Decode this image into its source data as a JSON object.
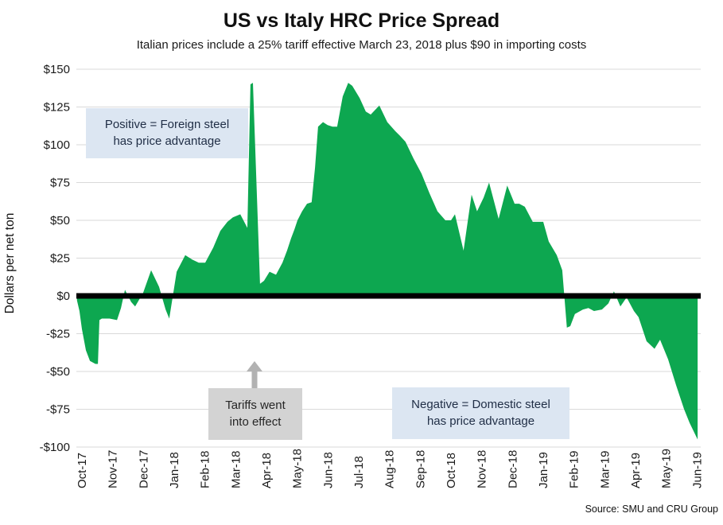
{
  "chart_data": {
    "type": "area",
    "title": "US vs Italy HRC Price Spread",
    "subtitle": "Italian prices include a 25% tariff effective March 23, 2018 plus $90 in importing costs",
    "ylabel": "Dollars per net ton",
    "source": "Source: SMU and CRU Group",
    "x_tick_labels": [
      "Oct-17",
      "Nov-17",
      "Dec-17",
      "Jan-18",
      "Feb-18",
      "Mar-18",
      "Apr-18",
      "May-18",
      "Jun-18",
      "Jul-18",
      "Aug-18",
      "Sep-18",
      "Oct-18",
      "Nov-18",
      "Dec-18",
      "Jan-19",
      "Feb-19",
      "Mar-19",
      "Apr-19",
      "May-19",
      "Jun-19"
    ],
    "y_tick_labels": [
      "$150",
      "$125",
      "$100",
      "$75",
      "$50",
      "$25",
      "$0",
      "-$25",
      "-$50",
      "-$75",
      "-$100"
    ],
    "y_tick_values": [
      150,
      125,
      100,
      75,
      50,
      25,
      0,
      -25,
      -50,
      -75,
      -100
    ],
    "ylim": [
      -100,
      150
    ],
    "grid": "horizontal",
    "zero_line": true,
    "legend": "none",
    "x_unit": "months since Oct-17 (weekly data points)",
    "series": [
      {
        "name": "US minus Italy HRC price spread ($ per net ton)",
        "points_month_value": [
          [
            -0.16,
            -3
          ],
          [
            -0.08,
            -10
          ],
          [
            0,
            -22
          ],
          [
            0.13,
            -36
          ],
          [
            0.26,
            -43
          ],
          [
            0.44,
            -45
          ],
          [
            0.52,
            -45
          ],
          [
            0.57,
            -16
          ],
          [
            0.65,
            -15
          ],
          [
            0.9,
            -15
          ],
          [
            1.14,
            -16
          ],
          [
            1.27,
            -8
          ],
          [
            1.4,
            4
          ],
          [
            1.6,
            -4
          ],
          [
            1.73,
            -7
          ],
          [
            1.99,
            2
          ],
          [
            2.25,
            17
          ],
          [
            2.51,
            6
          ],
          [
            2.72,
            -9
          ],
          [
            2.84,
            -15
          ],
          [
            3.08,
            16
          ],
          [
            3.36,
            27
          ],
          [
            3.59,
            24
          ],
          [
            3.8,
            22
          ],
          [
            4.01,
            22
          ],
          [
            4.27,
            32
          ],
          [
            4.5,
            43
          ],
          [
            4.73,
            49
          ],
          [
            4.91,
            52
          ],
          [
            5.15,
            54
          ],
          [
            5.38,
            45
          ],
          [
            5.48,
            140
          ],
          [
            5.56,
            141
          ],
          [
            5.79,
            8
          ],
          [
            5.92,
            10
          ],
          [
            6.1,
            16
          ],
          [
            6.31,
            14
          ],
          [
            6.52,
            22
          ],
          [
            6.67,
            30
          ],
          [
            6.8,
            38
          ],
          [
            6.91,
            44
          ],
          [
            7.01,
            50
          ],
          [
            7.16,
            56
          ],
          [
            7.32,
            61
          ],
          [
            7.47,
            62
          ],
          [
            7.58,
            85
          ],
          [
            7.68,
            112
          ],
          [
            7.84,
            115
          ],
          [
            7.99,
            113
          ],
          [
            8.15,
            112
          ],
          [
            8.3,
            112
          ],
          [
            8.48,
            132
          ],
          [
            8.66,
            141
          ],
          [
            8.79,
            139
          ],
          [
            9.03,
            131
          ],
          [
            9.23,
            122
          ],
          [
            9.39,
            120
          ],
          [
            9.67,
            126
          ],
          [
            9.93,
            115
          ],
          [
            10.19,
            109
          ],
          [
            10.34,
            106
          ],
          [
            10.52,
            102
          ],
          [
            10.78,
            91
          ],
          [
            11.04,
            81
          ],
          [
            11.3,
            68
          ],
          [
            11.56,
            56
          ],
          [
            11.82,
            50
          ],
          [
            12,
            50
          ],
          [
            12.13,
            54
          ],
          [
            12.41,
            30
          ],
          [
            12.67,
            67
          ],
          [
            12.85,
            56
          ],
          [
            13.06,
            65
          ],
          [
            13.24,
            75
          ],
          [
            13.55,
            51
          ],
          [
            13.83,
            73
          ],
          [
            14.07,
            61
          ],
          [
            14.22,
            61
          ],
          [
            14.4,
            59
          ],
          [
            14.66,
            49
          ],
          [
            14.87,
            49
          ],
          [
            15,
            49
          ],
          [
            15.18,
            36
          ],
          [
            15.44,
            27
          ],
          [
            15.62,
            17
          ],
          [
            15.77,
            -21
          ],
          [
            15.88,
            -20
          ],
          [
            16.03,
            -12
          ],
          [
            16.29,
            -9
          ],
          [
            16.47,
            -8
          ],
          [
            16.65,
            -10
          ],
          [
            16.91,
            -9
          ],
          [
            17.12,
            -5
          ],
          [
            17.3,
            3
          ],
          [
            17.51,
            -7
          ],
          [
            17.71,
            -1
          ],
          [
            17.95,
            -10
          ],
          [
            18.1,
            -14
          ],
          [
            18.36,
            -30
          ],
          [
            18.62,
            -35
          ],
          [
            18.8,
            -29
          ],
          [
            19.06,
            -42
          ],
          [
            19.32,
            -59
          ],
          [
            19.58,
            -75
          ],
          [
            19.76,
            -84
          ],
          [
            20.02,
            -95
          ]
        ]
      }
    ],
    "annotations": [
      {
        "id": "positive-note",
        "style": "light-blue",
        "text_lines": [
          "Positive = Foreign steel",
          "has price advantage"
        ]
      },
      {
        "id": "tariff-note",
        "style": "gray",
        "arrow": "up",
        "text_lines": [
          "Tariffs went",
          "into effect"
        ]
      },
      {
        "id": "negative-note",
        "style": "light-blue",
        "text_lines": [
          "Negative = Domestic steel",
          "has price advantage"
        ]
      }
    ],
    "colors": {
      "area_fill": "#0DA750",
      "zero_line": "#000000",
      "gridline": "#D9D9D9",
      "tick_text": "#1A1A1A",
      "annotation_blue_bg": "#DCE6F2",
      "annotation_blue_text": "#1F2D45",
      "annotation_gray_bg": "#D3D3D3",
      "arrow_gray": "#B2B2B2"
    }
  }
}
